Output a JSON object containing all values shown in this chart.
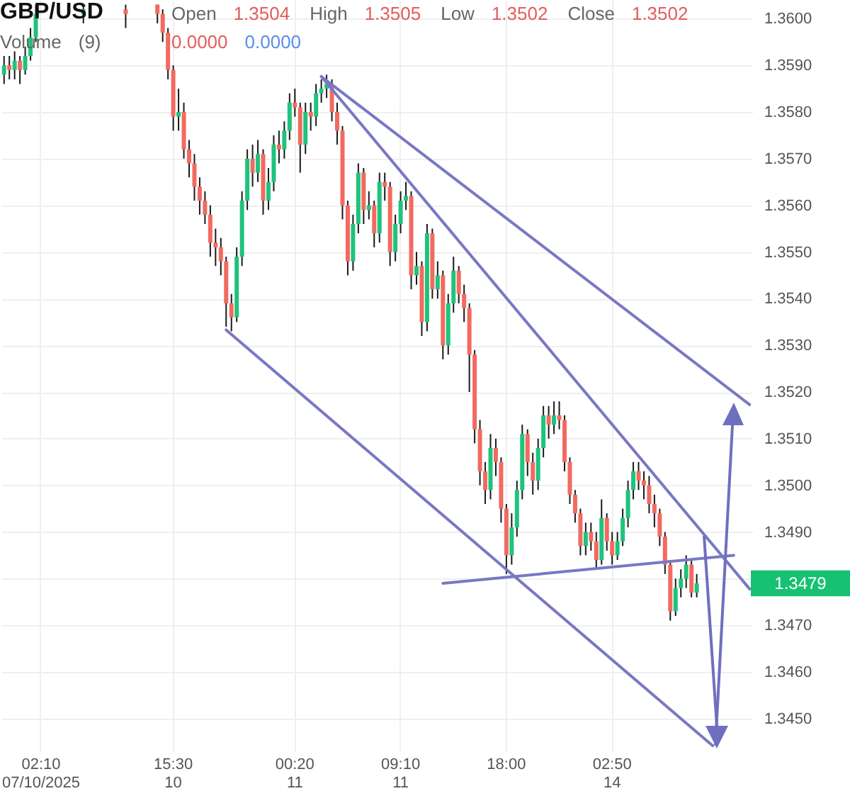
{
  "chart_data": {
    "type": "candlestick",
    "title": "GBP/USD",
    "annotations": [
      "Open 1.3504 High 1.3505 Low 1.3502 Close 1.3502",
      "Volume (9)",
      "0.0000 0.0000",
      "1.3479"
    ],
    "categories": [
      null,
      null,
      null,
      null,
      null,
      null,
      null,
      "02:10\n07/10/2025",
      null,
      null,
      null,
      null,
      null,
      null,
      null,
      null,
      null,
      null,
      null,
      null,
      null,
      null,
      null,
      null,
      null,
      null,
      null,
      null,
      null,
      null,
      null,
      null,
      "15:30\n10",
      null,
      null,
      null,
      null,
      null,
      null,
      null,
      null,
      null,
      null,
      null,
      null,
      null,
      null,
      null,
      null,
      null,
      null,
      null,
      null,
      null,
      null,
      "00:20\n11",
      null,
      null,
      null,
      null,
      null,
      null,
      null,
      null,
      null,
      null,
      null,
      null,
      null,
      null,
      null,
      null,
      null,
      null,
      null,
      "09:10\n11",
      null,
      null,
      null,
      null,
      null,
      null,
      null,
      null,
      null,
      null,
      null,
      null,
      null,
      null,
      null,
      null,
      null,
      null,
      null,
      "18:00",
      null,
      null,
      null,
      null,
      null,
      null,
      null,
      null,
      null,
      null,
      null,
      null,
      null,
      null,
      null,
      null,
      null,
      null,
      null,
      "02:50\n14",
      null,
      null,
      null,
      null,
      null,
      null,
      null,
      null,
      null,
      null,
      null,
      null,
      null,
      null,
      null,
      null,
      null,
      null,
      null,
      null,
      null,
      null,
      null,
      null,
      null,
      null
    ],
    "ohlc": [
      [
        1.3588,
        1.3592,
        1.3586,
        1.359
      ],
      [
        1.359,
        1.3592,
        1.3587,
        1.3589
      ],
      [
        1.3589,
        1.3593,
        1.3587,
        1.3591
      ],
      [
        1.3591,
        1.3592,
        1.3586,
        1.3589
      ],
      [
        1.3589,
        1.3594,
        1.3588,
        1.3592
      ],
      [
        1.3592,
        1.3598,
        1.3591,
        1.3596
      ],
      [
        1.3596,
        1.3603,
        1.3595,
        1.3601
      ],
      null,
      null,
      null,
      null,
      null,
      null,
      null,
      null,
      [
        1.3601,
        1.3603,
        1.3599,
        1.3602
      ],
      null,
      null,
      null,
      null,
      null,
      null,
      null,
      [
        1.3602,
        1.3603,
        1.3598,
        1.3601
      ],
      null,
      null,
      null,
      null,
      null,
      [
        1.3603,
        1.3603,
        1.3599,
        1.3601
      ],
      [
        1.3601,
        1.3602,
        1.3595,
        1.3597
      ],
      [
        1.3597,
        1.3598,
        1.3587,
        1.3589
      ],
      [
        1.3589,
        1.359,
        1.3576,
        1.3579
      ],
      [
        1.3579,
        1.3585,
        1.3576,
        1.358
      ],
      [
        1.358,
        1.3582,
        1.357,
        1.3572
      ],
      [
        1.3572,
        1.3574,
        1.3566,
        1.3569
      ],
      [
        1.3569,
        1.3571,
        1.3561,
        1.3564
      ],
      [
        1.3564,
        1.3566,
        1.3558,
        1.3561
      ],
      [
        1.3561,
        1.3563,
        1.3556,
        1.3558
      ],
      [
        1.3558,
        1.356,
        1.3549,
        1.3552
      ],
      [
        1.3552,
        1.3555,
        1.3547,
        1.3551
      ],
      [
        1.3551,
        1.3553,
        1.3545,
        1.3548
      ],
      [
        1.3548,
        1.3549,
        1.3534,
        1.3539
      ],
      [
        1.3539,
        1.3541,
        1.3533,
        1.3536
      ],
      [
        1.3536,
        1.3551,
        1.3535,
        1.3549
      ],
      [
        1.3549,
        1.3563,
        1.3547,
        1.3561
      ],
      [
        1.3561,
        1.3572,
        1.3559,
        1.357
      ],
      [
        1.357,
        1.3573,
        1.3564,
        1.3567
      ],
      [
        1.3567,
        1.3574,
        1.3565,
        1.3571
      ],
      [
        1.3571,
        1.3572,
        1.3558,
        1.3561
      ],
      [
        1.3561,
        1.3568,
        1.3559,
        1.3565
      ],
      [
        1.3565,
        1.3575,
        1.3563,
        1.3573
      ],
      [
        1.3573,
        1.3576,
        1.3569,
        1.3572
      ],
      [
        1.3572,
        1.3578,
        1.357,
        1.3576
      ],
      [
        1.3576,
        1.3584,
        1.3574,
        1.3582
      ],
      [
        1.3582,
        1.3585,
        1.3579,
        1.3581
      ],
      [
        1.3581,
        1.3582,
        1.3567,
        1.3573
      ],
      [
        1.3573,
        1.3582,
        1.3571,
        1.358
      ],
      [
        1.358,
        1.3582,
        1.3576,
        1.3579
      ],
      [
        1.3579,
        1.3586,
        1.3577,
        1.3584
      ],
      [
        1.3584,
        1.3587,
        1.3582,
        1.3585
      ],
      [
        1.3585,
        1.3588,
        1.3583,
        1.3586
      ],
      [
        1.3586,
        1.3587,
        1.3578,
        1.358
      ],
      [
        1.358,
        1.3582,
        1.3573,
        1.3576
      ],
      [
        1.3576,
        1.3577,
        1.3557,
        1.356
      ],
      [
        1.356,
        1.3561,
        1.3545,
        1.3548
      ],
      [
        1.3548,
        1.3558,
        1.3546,
        1.3556
      ],
      [
        1.3556,
        1.3569,
        1.3554,
        1.3567
      ],
      [
        1.3567,
        1.3568,
        1.3556,
        1.3559
      ],
      [
        1.3559,
        1.3563,
        1.3557,
        1.356
      ],
      [
        1.356,
        1.3561,
        1.3551,
        1.3554
      ],
      [
        1.3554,
        1.3567,
        1.3552,
        1.3565
      ],
      [
        1.3565,
        1.3567,
        1.3561,
        1.3564
      ],
      [
        1.3564,
        1.3565,
        1.3547,
        1.355
      ],
      [
        1.355,
        1.3558,
        1.3548,
        1.3556
      ],
      [
        1.3556,
        1.3563,
        1.3554,
        1.3561
      ],
      [
        1.3561,
        1.3565,
        1.3559,
        1.3562
      ],
      [
        1.3562,
        1.3563,
        1.3542,
        1.3545
      ],
      [
        1.3545,
        1.355,
        1.3543,
        1.3547
      ],
      [
        1.3547,
        1.3548,
        1.3532,
        1.3535
      ],
      [
        1.3535,
        1.3556,
        1.3533,
        1.3554
      ],
      [
        1.3554,
        1.3555,
        1.354,
        1.3542
      ],
      [
        1.3542,
        1.3548,
        1.354,
        1.3545
      ],
      [
        1.3545,
        1.3546,
        1.3527,
        1.353
      ],
      [
        1.353,
        1.3541,
        1.3528,
        1.3539
      ],
      [
        1.3539,
        1.3549,
        1.3537,
        1.3546
      ],
      [
        1.3546,
        1.3547,
        1.3539,
        1.3541
      ],
      [
        1.3541,
        1.3543,
        1.3535,
        1.3538
      ],
      [
        1.3538,
        1.3539,
        1.352,
        1.3528
      ],
      [
        1.3528,
        1.3529,
        1.3509,
        1.3512
      ],
      [
        1.3512,
        1.3514,
        1.35,
        1.3503
      ],
      [
        1.3503,
        1.3505,
        1.3496,
        1.3499
      ],
      [
        1.3499,
        1.3511,
        1.3497,
        1.3508
      ],
      [
        1.3508,
        1.351,
        1.3502,
        1.3505
      ],
      [
        1.3505,
        1.3506,
        1.3492,
        1.3495
      ],
      [
        1.3495,
        1.3496,
        1.3481,
        1.3485
      ],
      [
        1.3485,
        1.3494,
        1.3483,
        1.3491
      ],
      [
        1.3491,
        1.3501,
        1.3489,
        1.3499
      ],
      [
        1.3499,
        1.3513,
        1.3497,
        1.3511
      ],
      [
        1.3511,
        1.3512,
        1.3502,
        1.3505
      ],
      [
        1.3505,
        1.3507,
        1.3498,
        1.3501
      ],
      [
        1.3501,
        1.351,
        1.3499,
        1.3508
      ],
      [
        1.3508,
        1.3517,
        1.3506,
        1.3515
      ],
      [
        1.3515,
        1.3517,
        1.351,
        1.3513
      ],
      [
        1.3513,
        1.3518,
        1.3511,
        1.3515
      ],
      [
        1.3515,
        1.3518,
        1.3512,
        1.3514
      ],
      [
        1.3514,
        1.3515,
        1.3503,
        1.3505
      ],
      [
        1.3505,
        1.3506,
        1.3496,
        1.3498
      ],
      [
        1.3498,
        1.3499,
        1.3492,
        1.3494
      ],
      [
        1.3494,
        1.3495,
        1.3485,
        1.3487
      ],
      [
        1.3487,
        1.3492,
        1.3485,
        1.349
      ],
      [
        1.349,
        1.3492,
        1.3486,
        1.3488
      ],
      [
        1.3488,
        1.349,
        1.3482,
        1.3484
      ],
      [
        1.3484,
        1.3497,
        1.3483,
        1.3493
      ],
      [
        1.3493,
        1.3494,
        1.3486,
        1.3488
      ],
      [
        1.3488,
        1.349,
        1.3483,
        1.3485
      ],
      [
        1.3485,
        1.349,
        1.3484,
        1.3488
      ],
      [
        1.3488,
        1.3495,
        1.3487,
        1.3493
      ],
      [
        1.3493,
        1.3501,
        1.3491,
        1.3499
      ],
      [
        1.3499,
        1.3505,
        1.3497,
        1.3503
      ],
      [
        1.3503,
        1.3505,
        1.3499,
        1.3501
      ],
      [
        1.3501,
        1.3503,
        1.3497,
        1.35
      ],
      [
        1.35,
        1.3502,
        1.3494,
        1.3496
      ],
      [
        1.3496,
        1.3498,
        1.3491,
        1.3494
      ],
      [
        1.3494,
        1.3495,
        1.3487,
        1.3489
      ],
      [
        1.3489,
        1.349,
        1.3481,
        1.3483
      ],
      [
        1.3483,
        1.3484,
        1.3471,
        1.3473
      ],
      [
        1.3473,
        1.348,
        1.3472,
        1.3478
      ],
      [
        1.3478,
        1.3482,
        1.3476,
        1.348
      ],
      [
        1.348,
        1.3485,
        1.3478,
        1.3483
      ],
      [
        1.3483,
        1.3484,
        1.3476,
        1.3477
      ],
      [
        1.3477,
        1.3481,
        1.3476,
        1.3479
      ],
      null,
      null,
      null,
      null,
      null,
      null,
      null,
      null,
      null,
      null
    ],
    "series": [
      {
        "type": "line",
        "color": "#7878c2",
        "values": [
          null,
          null,
          null,
          null,
          null,
          null,
          null,
          null,
          null,
          null,
          null,
          null,
          null,
          null,
          null,
          null,
          null,
          null,
          null,
          null,
          null,
          null,
          null,
          null,
          null,
          null,
          null,
          null,
          null,
          null,
          null,
          null,
          null,
          null,
          null,
          null,
          null,
          null,
          null,
          null,
          null,
          null,
          null,
          null,
          null,
          null,
          null,
          null,
          null,
          null,
          null,
          null,
          null,
          null,
          null,
          null,
          null,
          null,
          null,
          null,
          1.35876,
          null,
          null,
          null,
          null,
          null,
          null,
          null,
          null,
          null,
          null,
          null,
          null,
          null,
          null,
          null,
          null,
          null,
          null,
          null,
          null,
          null,
          null,
          null,
          null,
          null,
          null,
          null,
          null,
          null,
          null,
          null,
          null,
          null,
          null,
          null,
          null,
          null,
          null,
          null,
          null,
          null,
          null,
          null,
          null,
          null,
          null,
          null,
          null,
          null,
          null,
          null,
          null,
          null,
          null,
          null,
          null,
          null,
          null,
          null,
          null,
          null,
          null,
          null,
          null,
          null,
          null,
          null,
          null,
          null,
          null,
          null,
          null,
          null,
          null,
          null,
          null,
          null,
          null,
          null,
          null,
          1.35173
        ]
      },
      {
        "type": "line",
        "color": "#7878c2",
        "values": [
          null,
          null,
          null,
          null,
          null,
          null,
          null,
          null,
          null,
          null,
          null,
          null,
          null,
          null,
          null,
          null,
          null,
          null,
          null,
          null,
          null,
          null,
          null,
          null,
          null,
          null,
          null,
          null,
          null,
          null,
          null,
          null,
          null,
          null,
          null,
          null,
          null,
          null,
          null,
          null,
          null,
          null,
          null,
          null,
          null,
          null,
          null,
          null,
          null,
          null,
          null,
          null,
          null,
          null,
          null,
          null,
          null,
          null,
          null,
          null,
          1.35876,
          null,
          null,
          null,
          null,
          null,
          null,
          null,
          null,
          null,
          null,
          null,
          null,
          null,
          null,
          null,
          null,
          null,
          null,
          null,
          null,
          null,
          null,
          null,
          null,
          null,
          null,
          null,
          null,
          null,
          null,
          null,
          null,
          null,
          null,
          null,
          null,
          null,
          null,
          null,
          null,
          null,
          null,
          null,
          null,
          null,
          null,
          null,
          null,
          null,
          null,
          null,
          null,
          null,
          null,
          null,
          null,
          null,
          null,
          null,
          null,
          null,
          null,
          null,
          null,
          null,
          null,
          null,
          null,
          null,
          null,
          null,
          null,
          null,
          null,
          null,
          null,
          null,
          null,
          null,
          null,
          1.34778
        ]
      },
      {
        "type": "line",
        "color": "#7878c2",
        "values": [
          null,
          null,
          null,
          null,
          null,
          null,
          null,
          null,
          null,
          null,
          null,
          null,
          null,
          null,
          null,
          null,
          null,
          null,
          null,
          null,
          null,
          null,
          null,
          null,
          null,
          null,
          null,
          null,
          null,
          null,
          null,
          null,
          null,
          null,
          null,
          null,
          null,
          null,
          null,
          null,
          null,
          null,
          1.35333,
          null,
          null,
          null,
          null,
          null,
          null,
          null,
          null,
          null,
          null,
          null,
          null,
          null,
          null,
          null,
          null,
          null,
          null,
          null,
          null,
          null,
          null,
          null,
          null,
          null,
          null,
          null,
          null,
          null,
          null,
          null,
          null,
          null,
          null,
          null,
          null,
          null,
          null,
          null,
          null,
          null,
          null,
          null,
          null,
          null,
          null,
          null,
          null,
          null,
          null,
          null,
          null,
          null,
          null,
          null,
          null,
          null,
          null,
          null,
          null,
          null,
          null,
          null,
          null,
          null,
          null,
          null,
          null,
          null,
          null,
          null,
          null,
          null,
          null,
          null,
          null,
          null,
          null,
          null,
          null,
          null,
          null,
          null,
          null,
          null,
          null,
          null,
          null,
          null,
          null,
          null,
          1.34442,
          null,
          null,
          null,
          null,
          null,
          null,
          null
        ]
      },
      {
        "type": "line",
        "color": "#7878c2",
        "values": [
          null,
          null,
          null,
          null,
          null,
          null,
          null,
          null,
          null,
          null,
          null,
          null,
          null,
          null,
          null,
          null,
          null,
          null,
          null,
          null,
          null,
          null,
          null,
          null,
          null,
          null,
          null,
          null,
          null,
          null,
          null,
          null,
          null,
          null,
          null,
          null,
          null,
          null,
          null,
          null,
          null,
          null,
          null,
          null,
          null,
          null,
          null,
          null,
          null,
          null,
          null,
          null,
          null,
          null,
          null,
          null,
          null,
          null,
          null,
          null,
          null,
          null,
          null,
          null,
          null,
          null,
          null,
          null,
          null,
          null,
          null,
          null,
          null,
          null,
          null,
          null,
          null,
          null,
          null,
          null,
          null,
          null,
          null,
          1.3479,
          null,
          null,
          null,
          null,
          null,
          null,
          null,
          null,
          null,
          null,
          null,
          null,
          null,
          null,
          null,
          null,
          null,
          null,
          null,
          null,
          null,
          null,
          null,
          null,
          null,
          null,
          null,
          null,
          null,
          null,
          null,
          null,
          null,
          null,
          null,
          null,
          null,
          null,
          null,
          null,
          null,
          null,
          null,
          null,
          null,
          null,
          null,
          null,
          null,
          null,
          null,
          null,
          null,
          null,
          1.3485,
          null,
          null,
          null
        ]
      }
    ],
    "ylim": [
      1.3443,
      1.3604
    ],
    "yticks": [
      {
        "value": 1.345,
        "label": "1.3450"
      },
      {
        "value": 1.346,
        "label": "1.3460"
      },
      {
        "value": 1.347,
        "label": "1.3470"
      },
      {
        "value": 1.348,
        "label": null
      },
      {
        "value": 1.349,
        "label": "1.3490"
      },
      {
        "value": 1.35,
        "label": "1.3500"
      },
      {
        "value": 1.351,
        "label": "1.3510"
      },
      {
        "value": 1.352,
        "label": "1.3520"
      },
      {
        "value": 1.353,
        "label": "1.3530"
      },
      {
        "value": 1.354,
        "label": "1.3540"
      },
      {
        "value": 1.355,
        "label": "1.3550"
      },
      {
        "value": 1.356,
        "label": "1.3560"
      },
      {
        "value": 1.357,
        "label": "1.3570"
      },
      {
        "value": 1.358,
        "label": "1.3580"
      },
      {
        "value": 1.359,
        "label": "1.3590"
      },
      {
        "value": 1.36,
        "label": "1.3600"
      }
    ],
    "grid": true
  }
}
